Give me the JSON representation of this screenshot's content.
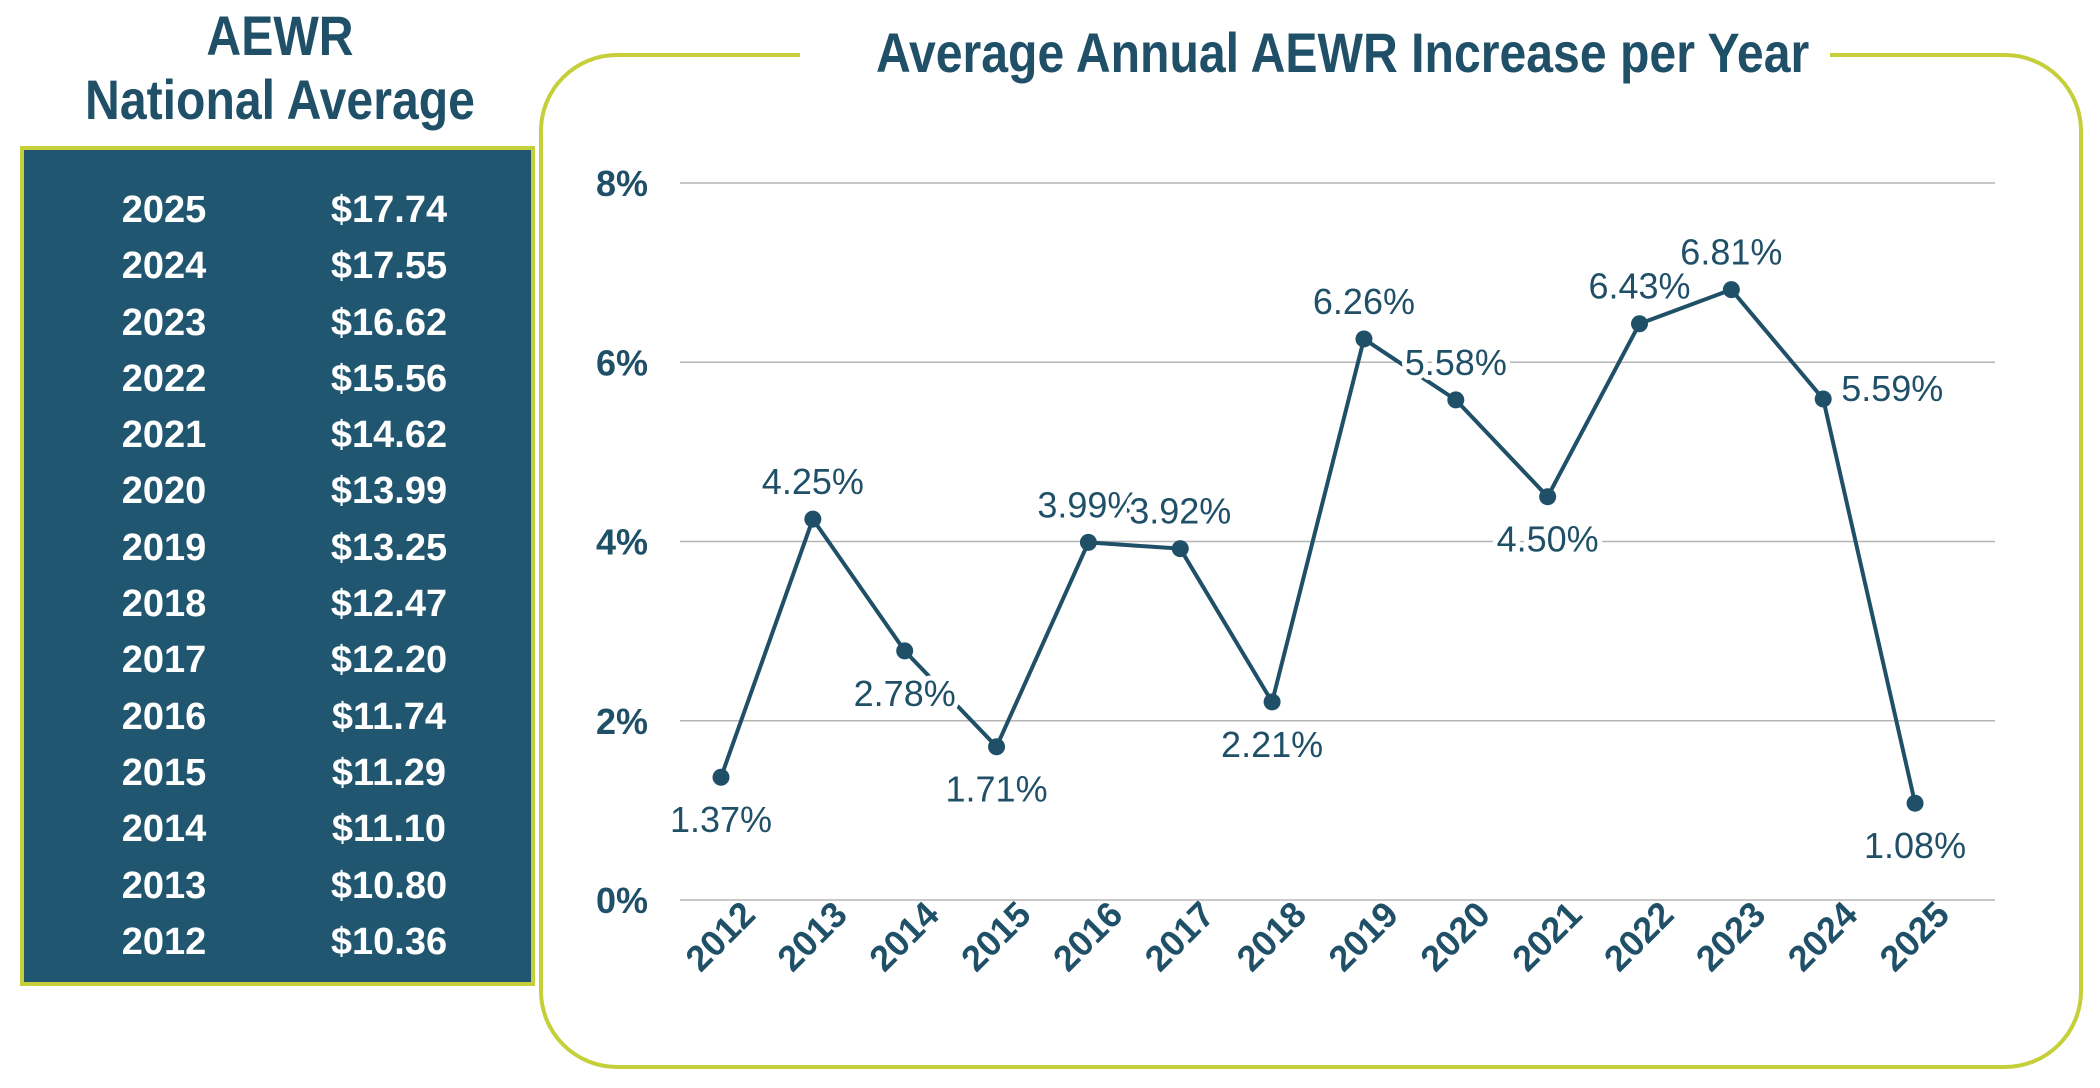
{
  "side_panel": {
    "title_line1": "AEWR",
    "title_line2": "National Average",
    "rows": [
      {
        "year": "2025",
        "value": "$17.74"
      },
      {
        "year": "2024",
        "value": "$17.55"
      },
      {
        "year": "2023",
        "value": "$16.62"
      },
      {
        "year": "2022",
        "value": "$15.56"
      },
      {
        "year": "2021",
        "value": "$14.62"
      },
      {
        "year": "2020",
        "value": "$13.99"
      },
      {
        "year": "2019",
        "value": "$13.25"
      },
      {
        "year": "2018",
        "value": "$12.47"
      },
      {
        "year": "2017",
        "value": "$12.20"
      },
      {
        "year": "2016",
        "value": "$11.74"
      },
      {
        "year": "2015",
        "value": "$11.29"
      },
      {
        "year": "2014",
        "value": "$11.10"
      },
      {
        "year": "2013",
        "value": "$10.80"
      },
      {
        "year": "2012",
        "value": "$10.36"
      }
    ]
  },
  "colors": {
    "navy": "#1f5068",
    "table_bg": "#215670",
    "accent_lime": "#c5cf3a",
    "grid": "#b5b5b5"
  },
  "chart_data": {
    "type": "line",
    "title": "Average Annual AEWR Increase per Year",
    "xlabel": "",
    "ylabel": "",
    "categories": [
      "2012",
      "2013",
      "2014",
      "2015",
      "2016",
      "2017",
      "2018",
      "2019",
      "2020",
      "2021",
      "2022",
      "2023",
      "2024",
      "2025"
    ],
    "values": [
      1.37,
      4.25,
      2.78,
      1.71,
      3.99,
      3.92,
      2.21,
      6.26,
      5.58,
      4.5,
      6.43,
      6.81,
      5.59,
      1.08
    ],
    "data_labels": [
      "1.37%",
      "4.25%",
      "2.78%",
      "1.71%",
      "3.99%",
      "3.92%",
      "2.21%",
      "6.26%",
      "5.58%",
      "4.50%",
      "6.43%",
      "6.81%",
      "5.59%",
      "1.08%"
    ],
    "label_positions": [
      "below",
      "above",
      "below",
      "below",
      "above",
      "above",
      "below",
      "above",
      "above",
      "below",
      "above",
      "above",
      "right",
      "below"
    ],
    "ylim": [
      0,
      8
    ],
    "y_ticks": [
      0,
      2,
      4,
      6,
      8
    ],
    "y_tick_labels": [
      "0%",
      "2%",
      "4%",
      "6%",
      "8%"
    ],
    "grid": true,
    "legend": "none"
  }
}
